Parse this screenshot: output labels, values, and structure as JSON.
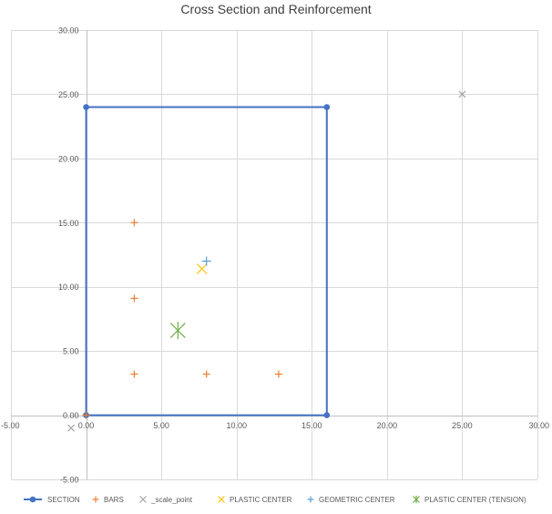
{
  "chart_data": {
    "type": "scatter",
    "title": "Cross Section and Reinforcement",
    "xlim": [
      -5,
      30
    ],
    "ylim": [
      -5,
      30
    ],
    "x_ticks": [
      -5,
      0,
      5,
      10,
      15,
      20,
      25,
      30
    ],
    "y_ticks": [
      -5,
      0,
      5,
      10,
      15,
      20,
      25,
      30
    ],
    "x_tick_labels": [
      "-5.00",
      "0.00",
      "5.00",
      "10.00",
      "15.00",
      "20.00",
      "25.00",
      "30.00"
    ],
    "y_tick_labels": [
      "-5.00",
      "0.00",
      "5.00",
      "10.00",
      "15.00",
      "20.00",
      "25.00",
      "30.00"
    ],
    "grid": true,
    "legend_position": "bottom",
    "series": [
      {
        "name": "SECTION",
        "marker": "circle",
        "line": true,
        "color": "#4472c4",
        "points": [
          [
            0,
            0
          ],
          [
            0,
            24
          ],
          [
            16,
            24
          ],
          [
            16,
            0
          ],
          [
            0,
            0
          ]
        ]
      },
      {
        "name": "BARS",
        "marker": "plus",
        "line": false,
        "color": "#ed7d31",
        "points": [
          [
            3.2,
            3.2
          ],
          [
            8,
            3.2
          ],
          [
            12.8,
            3.2
          ],
          [
            3.2,
            9.1
          ],
          [
            3.2,
            15
          ],
          [
            0,
            0
          ]
        ]
      },
      {
        "name": "_scale_point",
        "marker": "x",
        "line": false,
        "color": "#a5a5a5",
        "points": [
          [
            25,
            25
          ],
          [
            -1,
            -1
          ]
        ]
      },
      {
        "name": "PLASTIC CENTER",
        "marker": "x",
        "line": false,
        "color": "#ffc000",
        "points": [
          [
            7.7,
            11.4
          ]
        ]
      },
      {
        "name": "GEOMETRIC CENTER",
        "marker": "plus",
        "line": false,
        "color": "#5b9bd5",
        "points": [
          [
            8,
            12
          ]
        ]
      },
      {
        "name": "PLASTIC CENTER (TENSION)",
        "marker": "star",
        "line": false,
        "color": "#70ad47",
        "points": [
          [
            6.1,
            6.6
          ]
        ]
      }
    ]
  }
}
